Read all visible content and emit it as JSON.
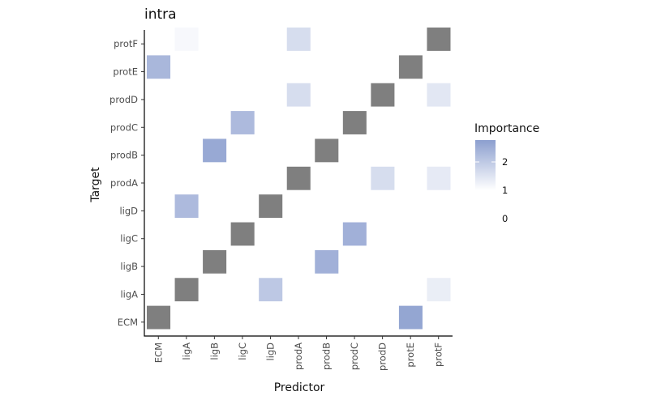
{
  "chart_data": {
    "type": "heatmap",
    "title": "intra",
    "xlabel": "Predictor",
    "ylabel": "Target",
    "x_categories": [
      "ECM",
      "ligA",
      "ligB",
      "ligC",
      "ligD",
      "prodA",
      "prodB",
      "prodC",
      "prodD",
      "protE",
      "protF"
    ],
    "y_categories": [
      "ECM",
      "ligA",
      "ligB",
      "ligC",
      "ligD",
      "prodA",
      "prodB",
      "prodC",
      "prodD",
      "protE",
      "protF"
    ],
    "diagonal_color": "#7f7f7f",
    "color_low": "#ffffff",
    "color_high": "#8c9fcf",
    "legend": {
      "title": "Importance",
      "ticks": [
        0,
        1,
        2
      ],
      "tick_labels": [
        "0",
        "1",
        "2"
      ],
      "range": [
        0,
        2.8
      ],
      "position": "right"
    },
    "cells": [
      {
        "x": "protE",
        "y": "ECM",
        "value": 2.6
      },
      {
        "x": "ligD",
        "y": "ligA",
        "value": 1.6
      },
      {
        "x": "protF",
        "y": "ligA",
        "value": 0.5
      },
      {
        "x": "prodB",
        "y": "ligB",
        "value": 2.3
      },
      {
        "x": "prodC",
        "y": "ligC",
        "value": 2.3
      },
      {
        "x": "ligA",
        "y": "ligD",
        "value": 2.0
      },
      {
        "x": "prodD",
        "y": "prodA",
        "value": 1.0
      },
      {
        "x": "protF",
        "y": "prodA",
        "value": 0.6
      },
      {
        "x": "ligB",
        "y": "prodB",
        "value": 2.5
      },
      {
        "x": "ligC",
        "y": "prodC",
        "value": 2.0
      },
      {
        "x": "prodA",
        "y": "prodD",
        "value": 1.0
      },
      {
        "x": "protF",
        "y": "prodD",
        "value": 0.7
      },
      {
        "x": "ECM",
        "y": "protE",
        "value": 2.1
      },
      {
        "x": "ligA",
        "y": "protF",
        "value": 0.2
      },
      {
        "x": "prodA",
        "y": "protF",
        "value": 1.0
      }
    ]
  }
}
